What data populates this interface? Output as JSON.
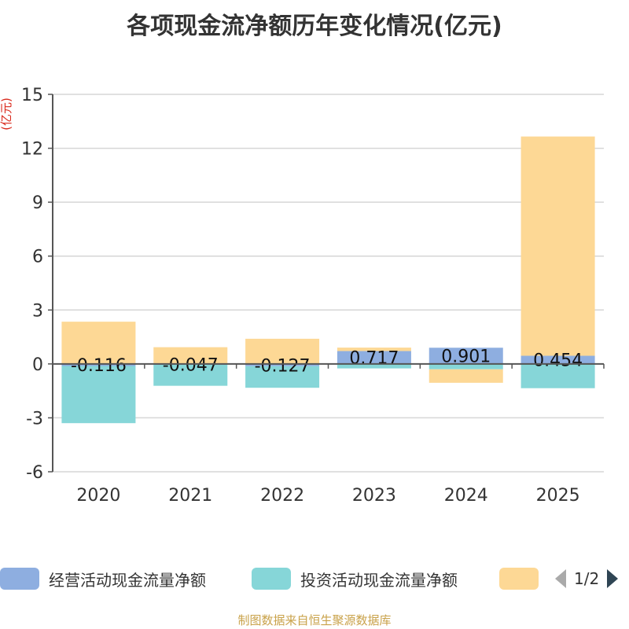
{
  "chart_data": {
    "type": "bar",
    "stacked": true,
    "title": "各项现金流净额历年变化情况(亿元)",
    "ylabel": "(亿元)",
    "xlabel": "",
    "ylim": [
      -6,
      15
    ],
    "yticks": [
      -6,
      -3,
      0,
      3,
      6,
      9,
      12,
      15
    ],
    "categories": [
      "2020",
      "2021",
      "2022",
      "2023",
      "2024",
      "2025"
    ],
    "series": [
      {
        "name": "经营活动现金流量净额",
        "color": "#8eaee0",
        "values": [
          -0.116,
          -0.047,
          -0.127,
          0.717,
          0.901,
          0.454
        ],
        "labels": [
          "-0.116",
          "-0.047",
          "-0.127",
          "0.717",
          "0.901",
          "0.454"
        ]
      },
      {
        "name": "投资活动现金流量净额",
        "color": "#86d6d8",
        "values": [
          -3.18,
          -1.17,
          -1.2,
          -0.25,
          -0.3,
          -1.35
        ],
        "labels": [
          "",
          "",
          "",
          "",
          "",
          ""
        ]
      },
      {
        "name": "",
        "color": "#fdd895",
        "values": [
          2.35,
          0.93,
          1.4,
          0.19,
          -0.75,
          12.2
        ],
        "labels": [
          "",
          "",
          "",
          "",
          "",
          ""
        ]
      }
    ],
    "legend": {
      "position": "bottom",
      "page": "1/2"
    }
  },
  "footer": "制图数据来自恒生聚源数据库"
}
